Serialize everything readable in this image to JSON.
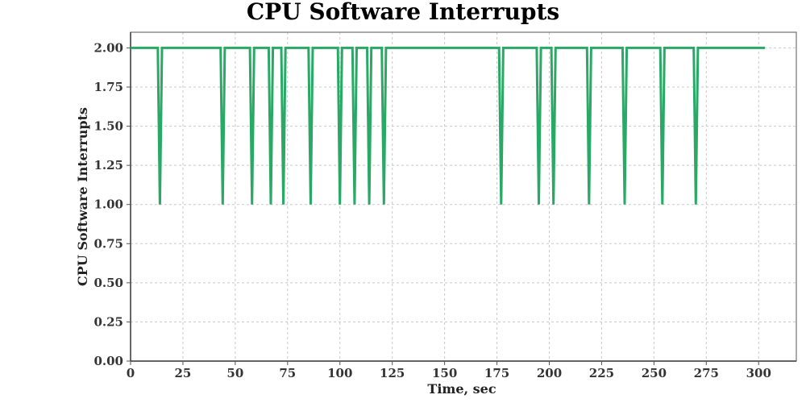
{
  "chart_data": {
    "type": "line",
    "title": "CPU Software Interrupts",
    "xlabel": "Time, sec",
    "ylabel": "CPU Software Interrupts",
    "xlim": [
      0,
      318
    ],
    "ylim": [
      0,
      2.1
    ],
    "xticks": [
      0,
      25,
      50,
      75,
      100,
      125,
      150,
      175,
      200,
      225,
      250,
      275,
      300
    ],
    "yticks": [
      0,
      0.25,
      0.5,
      0.75,
      1.0,
      1.25,
      1.5,
      1.75,
      2.0
    ],
    "xtick_labels": [
      "0",
      "25",
      "50",
      "75",
      "100",
      "125",
      "150",
      "175",
      "200",
      "225",
      "250",
      "275",
      "300"
    ],
    "ytick_labels": [
      "0.00",
      "0.25",
      "0.50",
      "0.75",
      "1.00",
      "1.25",
      "1.50",
      "1.75",
      "2.00"
    ],
    "grid": true,
    "line_color": "#2aa866",
    "series": [
      {
        "x": [
          0,
          13,
          14,
          15,
          43,
          44,
          45,
          57,
          58,
          59,
          66,
          67,
          68,
          72,
          73,
          74,
          85,
          86,
          87,
          99,
          100,
          101,
          106,
          107,
          108,
          113,
          114,
          115,
          120,
          121,
          122,
          176,
          177,
          178,
          194,
          195,
          196,
          201,
          202,
          203,
          218,
          219,
          220,
          235,
          236,
          237,
          253,
          254,
          255,
          269,
          270,
          271,
          303
        ],
        "values": [
          2,
          2,
          1,
          2,
          2,
          1,
          2,
          2,
          1,
          2,
          2,
          1,
          2,
          2,
          1,
          2,
          2,
          1,
          2,
          2,
          1,
          2,
          2,
          1,
          2,
          2,
          1,
          2,
          2,
          1,
          2,
          2,
          1,
          2,
          2,
          1,
          2,
          2,
          1,
          2,
          2,
          1,
          2,
          2,
          1,
          2,
          2,
          1,
          2,
          2,
          1,
          2,
          2
        ]
      }
    ]
  }
}
